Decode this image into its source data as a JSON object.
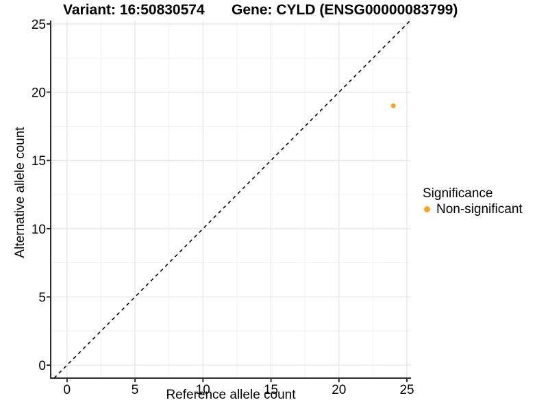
{
  "chart_data": {
    "type": "scatter",
    "title_left": "Variant: 16:50830574",
    "title_right": "Gene: CYLD (ENSG00000083799)",
    "xlabel": "Reference allele count",
    "ylabel": "Alternative allele count",
    "xlim": [
      -1.2,
      25.3
    ],
    "ylim": [
      -0.95,
      25.25
    ],
    "x_ticks": [
      0,
      5,
      10,
      15,
      20,
      25
    ],
    "x_minor_ticks": [
      2.5,
      7.5,
      12.5,
      17.5,
      22.5
    ],
    "y_ticks": [
      0,
      5,
      10,
      15,
      20,
      25
    ],
    "y_minor_ticks": [
      2.5,
      7.5,
      12.5,
      17.5,
      22.5
    ],
    "grid": "major+minor",
    "reference_line": {
      "type": "identity y=x",
      "style": "dashed",
      "color": "#000000"
    },
    "series": [
      {
        "name": "Non-significant",
        "color": "#FFA326",
        "points": [
          {
            "x": 24,
            "y": 19
          }
        ]
      }
    ],
    "legend": {
      "title": "Significance",
      "position": "right",
      "items": [
        {
          "label": "Non-significant",
          "color": "#FFA326"
        }
      ]
    }
  },
  "colors": {
    "background": "#FFFFFF",
    "grid_major": "#E4E4E4",
    "grid_minor": "#F1F1F1",
    "axis_line": "#2E2E2E",
    "tick_text": "#000000"
  }
}
